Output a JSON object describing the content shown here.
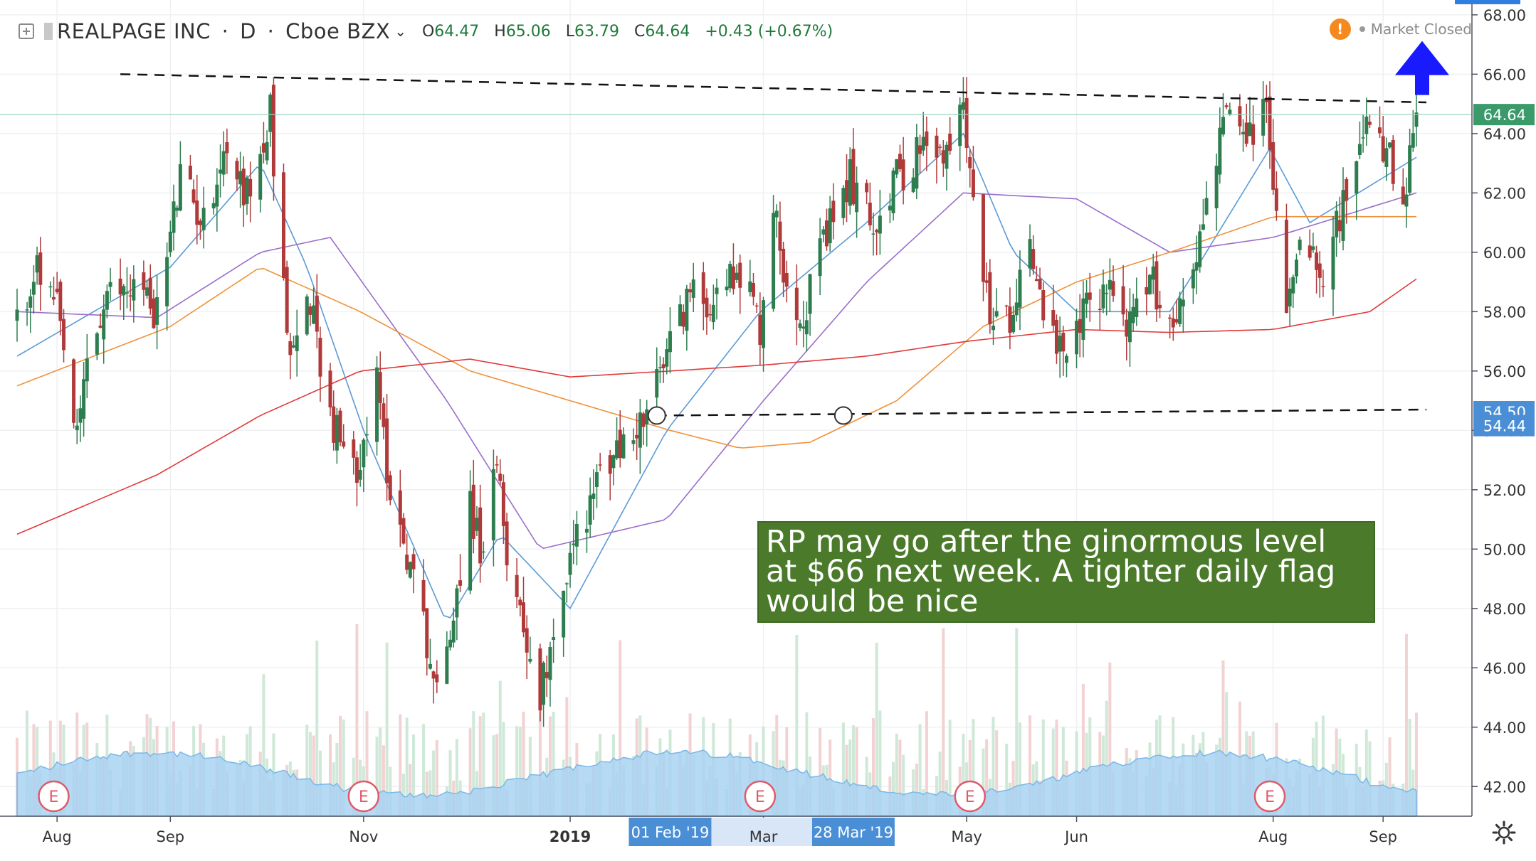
{
  "header": {
    "symbol": "REALPAGE INC",
    "interval": "D",
    "exchange": "Cboe BZX",
    "open_label": "O",
    "open": "64.47",
    "high_label": "H",
    "high": "65.06",
    "low_label": "L",
    "low": "63.79",
    "close_label": "C",
    "close": "64.64",
    "change": "+0.43 (+0.67%)",
    "market_status": "Market Closed"
  },
  "annotation": "RP may go after the ginormous level at $66 next week. A tighter daily flag would be nice",
  "price_labels": {
    "last": "64.64",
    "level_a": "54.50",
    "level_b": "54.44"
  },
  "colors": {
    "up": "#2e7d4f",
    "down": "#b03a3a",
    "sma_short": "#5b9bd5",
    "sma_mid": "#9b6ec8",
    "sma_orange": "#f0923a",
    "sma_red": "#e03a3a",
    "volume_area": "#a9d2f2",
    "annotation_bg": "#4a7a2a",
    "arrow": "#1a1aff",
    "price_label": "#4a8fd6",
    "last_label": "#3a9a6a"
  },
  "chart_data": {
    "type": "candlestick",
    "title": "REALPAGE INC, D, Cboe BZX",
    "ylim": [
      41,
      68.5
    ],
    "y_ticks": [
      42,
      44,
      46,
      48,
      50,
      52,
      54,
      56,
      58,
      60,
      62,
      64,
      66,
      68
    ],
    "y_tick_labels": [
      "42.00",
      "44.00",
      "46.00",
      "48.00",
      "50.00",
      "52.00",
      "54.00",
      "56.00",
      "58.00",
      "60.00",
      "62.00",
      "64.00",
      "66.00",
      "68.00"
    ],
    "x_labels": [
      {
        "date": "2018-08-01",
        "label": "Aug"
      },
      {
        "date": "2018-09-04",
        "label": "Sep"
      },
      {
        "date": "2018-11-01",
        "label": "Nov"
      },
      {
        "date": "2019-01-02",
        "label": "2019"
      },
      {
        "date": "2019-03-01",
        "label": "Mar"
      },
      {
        "date": "2019-05-01",
        "label": "May"
      },
      {
        "date": "2019-06-03",
        "label": "Jun"
      },
      {
        "date": "2019-08-01",
        "label": "Aug"
      },
      {
        "date": "2019-09-03",
        "label": "Sep"
      }
    ],
    "x_highlights": [
      {
        "date": "2019-02-01",
        "label": "01 Feb '19"
      },
      {
        "date": "2019-03-28",
        "label": "28 Mar '19"
      }
    ],
    "earnings_dates": [
      "2018-07-31",
      "2018-11-01",
      "2019-02-28",
      "2019-05-02",
      "2019-07-31"
    ],
    "earnings_label": "E",
    "start_date": "2018-07-20",
    "end_date": "2019-09-13",
    "price_path": [
      [
        "2018-07-20",
        57.5
      ],
      [
        "2018-07-25",
        59.5
      ],
      [
        "2018-08-01",
        58.0
      ],
      [
        "2018-08-07",
        53.5
      ],
      [
        "2018-08-10",
        56.5
      ],
      [
        "2018-08-17",
        58.5
      ],
      [
        "2018-08-24",
        59.0
      ],
      [
        "2018-08-31",
        58.0
      ],
      [
        "2018-09-07",
        62.5
      ],
      [
        "2018-09-14",
        61.0
      ],
      [
        "2018-09-20",
        63.5
      ],
      [
        "2018-09-27",
        62.0
      ],
      [
        "2018-10-03",
        63.8
      ],
      [
        "2018-10-04",
        64.8
      ],
      [
        "2018-10-05",
        62.0
      ],
      [
        "2018-10-10",
        56.5
      ],
      [
        "2018-10-16",
        58.5
      ],
      [
        "2018-10-22",
        54.5
      ],
      [
        "2018-10-29",
        52.5
      ],
      [
        "2018-11-05",
        55.5
      ],
      [
        "2018-11-09",
        52.0
      ],
      [
        "2018-11-15",
        49.5
      ],
      [
        "2018-11-20",
        47.0
      ],
      [
        "2018-11-23",
        45.0
      ],
      [
        "2018-11-28",
        48.0
      ],
      [
        "2018-12-03",
        51.5
      ],
      [
        "2018-12-06",
        50.0
      ],
      [
        "2018-12-11",
        52.5
      ],
      [
        "2018-12-14",
        50.0
      ],
      [
        "2018-12-19",
        47.5
      ],
      [
        "2018-12-24",
        45.0
      ],
      [
        "2018-12-28",
        47.5
      ],
      [
        "2019-01-04",
        50.5
      ],
      [
        "2019-01-11",
        52.5
      ],
      [
        "2019-01-18",
        53.5
      ],
      [
        "2019-01-25",
        54.5
      ],
      [
        "2019-01-31",
        56.5
      ],
      [
        "2019-02-06",
        58.5
      ],
      [
        "2019-02-13",
        58.5
      ],
      [
        "2019-02-22",
        59.5
      ],
      [
        "2019-02-28",
        57.5
      ],
      [
        "2019-03-04",
        61.5
      ],
      [
        "2019-03-08",
        59.0
      ],
      [
        "2019-03-13",
        58.0
      ],
      [
        "2019-03-20",
        60.5
      ],
      [
        "2019-03-27",
        62.5
      ],
      [
        "2019-04-03",
        61.0
      ],
      [
        "2019-04-10",
        62.5
      ],
      [
        "2019-04-17",
        63.5
      ],
      [
        "2019-04-24",
        63.0
      ],
      [
        "2019-04-30",
        65.0
      ],
      [
        "2019-05-03",
        62.5
      ],
      [
        "2019-05-06",
        58.5
      ],
      [
        "2019-05-13",
        57.5
      ],
      [
        "2019-05-20",
        60.5
      ],
      [
        "2019-05-24",
        58.0
      ],
      [
        "2019-05-31",
        56.0
      ],
      [
        "2019-06-05",
        58.0
      ],
      [
        "2019-06-12",
        59.0
      ],
      [
        "2019-06-19",
        57.5
      ],
      [
        "2019-06-26",
        59.0
      ],
      [
        "2019-07-02",
        57.5
      ],
      [
        "2019-07-10",
        60.5
      ],
      [
        "2019-07-17",
        64.5
      ],
      [
        "2019-07-24",
        63.8
      ],
      [
        "2019-07-30",
        64.8
      ],
      [
        "2019-08-01",
        62.5
      ],
      [
        "2019-08-05",
        57.8
      ],
      [
        "2019-08-09",
        61.0
      ],
      [
        "2019-08-16",
        59.5
      ],
      [
        "2019-08-23",
        62.0
      ],
      [
        "2019-08-30",
        64.2
      ],
      [
        "2019-09-04",
        63.5
      ],
      [
        "2019-09-09",
        61.0
      ],
      [
        "2019-09-11",
        63.0
      ],
      [
        "2019-09-13",
        64.64
      ]
    ],
    "moving_averages": [
      {
        "role": "sma_short",
        "points": [
          [
            "2018-07-20",
            56.5
          ],
          [
            "2018-09-04",
            59.5
          ],
          [
            "2018-10-01",
            63.0
          ],
          [
            "2018-10-15",
            59.5
          ],
          [
            "2018-11-01",
            54.0
          ],
          [
            "2018-11-26",
            47.5
          ],
          [
            "2018-12-12",
            50.5
          ],
          [
            "2019-01-02",
            48.0
          ],
          [
            "2019-01-31",
            54.0
          ],
          [
            "2019-02-28",
            58.0
          ],
          [
            "2019-04-01",
            61.0
          ],
          [
            "2019-04-30",
            64.0
          ],
          [
            "2019-05-15",
            60.0
          ],
          [
            "2019-06-03",
            58.0
          ],
          [
            "2019-07-01",
            58.0
          ],
          [
            "2019-07-31",
            63.5
          ],
          [
            "2019-08-12",
            61.0
          ],
          [
            "2019-09-13",
            63.2
          ]
        ]
      },
      {
        "role": "sma_mid",
        "points": [
          [
            "2018-07-20",
            58.0
          ],
          [
            "2018-08-31",
            57.8
          ],
          [
            "2018-10-01",
            60.0
          ],
          [
            "2018-10-22",
            60.5
          ],
          [
            "2018-11-26",
            55.0
          ],
          [
            "2018-12-24",
            50.0
          ],
          [
            "2019-01-31",
            51.0
          ],
          [
            "2019-03-01",
            55.0
          ],
          [
            "2019-04-01",
            59.0
          ],
          [
            "2019-04-30",
            62.0
          ],
          [
            "2019-06-03",
            61.8
          ],
          [
            "2019-07-01",
            60.0
          ],
          [
            "2019-08-01",
            60.5
          ],
          [
            "2019-09-13",
            62.0
          ]
        ]
      },
      {
        "role": "sma_orange",
        "points": [
          [
            "2018-07-20",
            55.5
          ],
          [
            "2018-09-04",
            57.5
          ],
          [
            "2018-10-01",
            59.5
          ],
          [
            "2018-10-31",
            58.0
          ],
          [
            "2018-12-03",
            56.0
          ],
          [
            "2019-01-02",
            55.0
          ],
          [
            "2019-02-01",
            54.0
          ],
          [
            "2019-02-22",
            53.4
          ],
          [
            "2019-03-15",
            53.6
          ],
          [
            "2019-04-10",
            55.0
          ],
          [
            "2019-05-06",
            57.5
          ],
          [
            "2019-06-03",
            59.0
          ],
          [
            "2019-07-01",
            60.0
          ],
          [
            "2019-08-01",
            61.2
          ],
          [
            "2019-09-13",
            61.2
          ]
        ]
      },
      {
        "role": "sma_red",
        "points": [
          [
            "2018-07-20",
            50.5
          ],
          [
            "2018-08-31",
            52.5
          ],
          [
            "2018-10-01",
            54.5
          ],
          [
            "2018-10-31",
            56.0
          ],
          [
            "2018-12-03",
            56.4
          ],
          [
            "2019-01-02",
            55.8
          ],
          [
            "2019-02-01",
            56.0
          ],
          [
            "2019-03-01",
            56.2
          ],
          [
            "2019-04-01",
            56.5
          ],
          [
            "2019-05-01",
            57.0
          ],
          [
            "2019-06-03",
            57.4
          ],
          [
            "2019-07-01",
            57.3
          ],
          [
            "2019-08-01",
            57.4
          ],
          [
            "2019-08-30",
            58.0
          ],
          [
            "2019-09-13",
            59.1
          ]
        ]
      }
    ],
    "trendlines": [
      {
        "name": "resistance",
        "from": [
          "2018-08-20",
          66.0
        ],
        "to": [
          "2019-09-16",
          65.05
        ]
      },
      {
        "name": "support",
        "from": [
          "2019-01-28",
          54.5
        ],
        "to": [
          "2019-09-16",
          54.7
        ]
      }
    ],
    "markers": [
      {
        "date": "2019-01-28",
        "value": 54.5
      },
      {
        "date": "2019-03-25",
        "value": 54.5
      }
    ],
    "breakout_arrow": {
      "date": "2019-09-13",
      "value": 65.3
    }
  }
}
